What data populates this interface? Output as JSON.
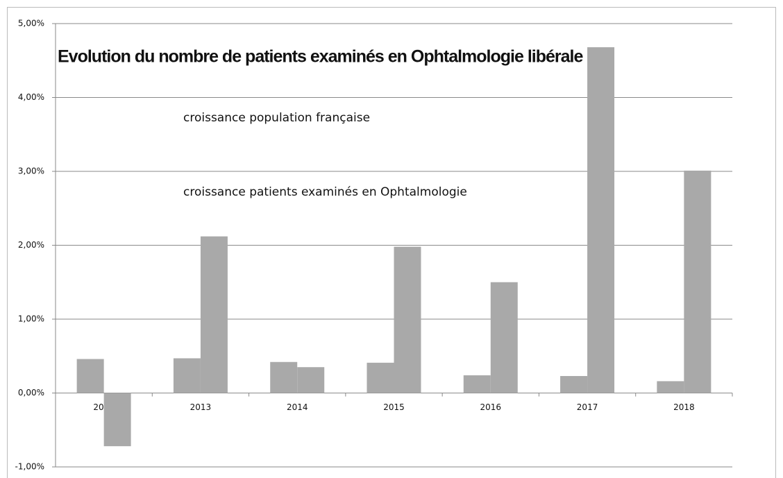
{
  "chart_data": {
    "type": "bar",
    "title": "Evolution du nombre de patients examinés en Ophtalmologie libérale",
    "categories": [
      "2012",
      "2013",
      "2014",
      "2015",
      "2016",
      "2017",
      "2018"
    ],
    "series": [
      {
        "name": "croissance population française",
        "color": "#a9a9a9",
        "values": [
          0.46,
          0.47,
          0.42,
          0.41,
          0.24,
          0.23,
          0.16
        ]
      },
      {
        "name": "croissance patients examinés en Ophtalmologie",
        "color": "#a9a9a9",
        "values": [
          -0.72,
          2.12,
          0.35,
          1.98,
          1.5,
          4.68,
          3.01
        ]
      }
    ],
    "ylim": [
      -1,
      5
    ],
    "yticks": [
      {
        "value": -1,
        "label": "-1,00%"
      },
      {
        "value": 0,
        "label": "0,00%"
      },
      {
        "value": 1,
        "label": "1,00%"
      },
      {
        "value": 2,
        "label": "2,00%"
      },
      {
        "value": 3,
        "label": "3,00%"
      },
      {
        "value": 4,
        "label": "4,00%"
      },
      {
        "value": 5,
        "label": "5,00%"
      }
    ],
    "grid": true
  }
}
